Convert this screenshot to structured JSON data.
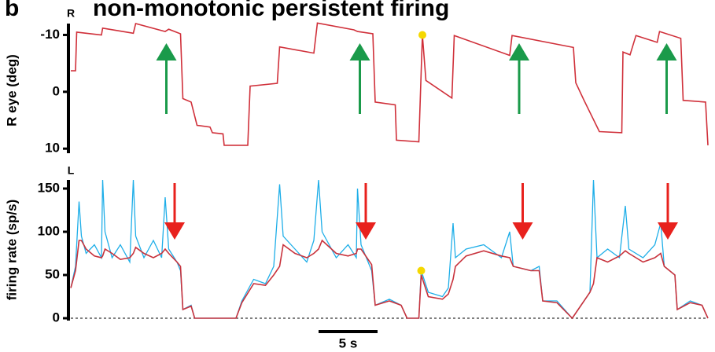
{
  "chart_data": [
    {
      "type": "line",
      "label": "b",
      "title": "non-monotonic persistent firing",
      "ylabel": "R eye (deg)",
      "top_label": "R",
      "bottom_label": "L",
      "xlim": [
        0,
        54
      ],
      "ylim": [
        10.8,
        -12
      ],
      "yticks": [
        -10,
        0,
        10
      ],
      "x": [
        0,
        0.4,
        0.5,
        2.6,
        2.7,
        5.3,
        5.5,
        8,
        8.3,
        9.3,
        9.5,
        10.2,
        10.7,
        11.8,
        12,
        12.9,
        13,
        15,
        15.2,
        17.5,
        17.7,
        20.6,
        20.9,
        24,
        24.3,
        25.6,
        25.8,
        27.5,
        27.6,
        29.5,
        29.8,
        30.1,
        32.3,
        32.5,
        37.2,
        37.4,
        42.6,
        42.8,
        43.5,
        44.8,
        46.7,
        46.8,
        47.4,
        47.9,
        49.7,
        49.9,
        51.7,
        51.9,
        53.8,
        54
      ],
      "series": [
        {
          "color": "#d0303a",
          "values": [
            -3.7,
            -3.7,
            -10.5,
            -10,
            -11.2,
            -10.3,
            -12,
            -10.6,
            -11,
            -10.2,
            1.2,
            1.8,
            5.9,
            6.2,
            7.2,
            7.4,
            9.4,
            9.4,
            -1,
            -1.5,
            -7.9,
            -6.8,
            -12.1,
            -10.9,
            -10.6,
            -10.2,
            1.8,
            2.3,
            8.5,
            8.8,
            -10,
            -2,
            1.1,
            -9.9,
            -6.4,
            -9.9,
            -7.8,
            -1.6,
            1.5,
            7,
            7.2,
            -7,
            -6.5,
            -9.9,
            -8.7,
            -10.6,
            -9.4,
            1.5,
            1.8,
            9.4
          ]
        },
        {
          "color": "#f5d800",
          "marker": "dot",
          "x": [
            29.8
          ],
          "values": [
            -10
          ]
        }
      ],
      "arrows": {
        "color": "#1a9a4a",
        "direction": "up",
        "x": [
          8.1,
          24.5,
          38,
          50.5
        ]
      }
    },
    {
      "type": "line",
      "ylabel": "firing rate (sp/s)",
      "zero_line": "dashed",
      "xlim": [
        0,
        54
      ],
      "ylim": [
        0,
        160
      ],
      "yticks": [
        0,
        50,
        100,
        150
      ],
      "x": [
        0,
        0.4,
        0.7,
        0.9,
        1.3,
        2,
        2.6,
        2.7,
        2.9,
        3.5,
        4.2,
        5,
        5.3,
        5.5,
        6.2,
        7,
        7.7,
        8,
        8.3,
        9,
        9.3,
        9.5,
        10.2,
        10.5,
        14,
        14.5,
        15.5,
        16.5,
        17.2,
        17.7,
        18,
        19,
        20,
        20.6,
        21,
        21.3,
        22.5,
        23.5,
        24.2,
        24.3,
        24.6,
        25.5,
        25.8,
        27,
        28,
        28.5,
        29.5,
        29.7,
        30.3,
        31.5,
        32,
        32.4,
        32.6,
        33.5,
        35,
        36.5,
        37.2,
        37.5,
        39,
        39.7,
        40,
        41.2,
        42.5,
        43,
        44,
        44.3,
        44.6,
        45.5,
        46.5,
        47,
        47.3,
        48.5,
        49.5,
        50,
        50.3,
        51.2,
        51.4,
        52.5,
        53.5,
        54
      ],
      "series": [
        {
          "color": "#1eaee8",
          "values": [
            35,
            60,
            135,
            95,
            75,
            85,
            70,
            160,
            100,
            70,
            85,
            65,
            160,
            95,
            70,
            90,
            70,
            140,
            80,
            65,
            55,
            10,
            15,
            0,
            0,
            20,
            45,
            40,
            60,
            155,
            95,
            80,
            65,
            90,
            160,
            100,
            70,
            85,
            70,
            150,
            85,
            55,
            15,
            22,
            15,
            0,
            0,
            55,
            30,
            25,
            35,
            110,
            70,
            80,
            85,
            70,
            100,
            60,
            55,
            60,
            20,
            20,
            0,
            10,
            30,
            160,
            70,
            80,
            70,
            130,
            80,
            70,
            85,
            110,
            60,
            50,
            10,
            20,
            15,
            0
          ]
        },
        {
          "color": "#c8323c",
          "values": [
            35,
            55,
            90,
            90,
            80,
            72,
            70,
            72,
            80,
            75,
            68,
            70,
            75,
            82,
            75,
            70,
            75,
            80,
            75,
            65,
            60,
            10,
            14,
            0,
            0,
            18,
            40,
            38,
            50,
            60,
            85,
            75,
            70,
            75,
            80,
            90,
            75,
            72,
            75,
            80,
            80,
            62,
            15,
            20,
            15,
            0,
            0,
            50,
            25,
            22,
            28,
            45,
            60,
            72,
            78,
            72,
            70,
            60,
            55,
            55,
            20,
            18,
            0,
            10,
            30,
            40,
            70,
            65,
            72,
            78,
            75,
            65,
            70,
            75,
            60,
            50,
            10,
            18,
            15,
            0
          ]
        },
        {
          "color": "#f5d800",
          "marker": "dot",
          "x": [
            29.7
          ],
          "values": [
            55
          ]
        }
      ],
      "arrows": {
        "color": "#e8211d",
        "direction": "down",
        "x": [
          8.8,
          25,
          38.3,
          50.6
        ]
      },
      "scale_bar": {
        "value": 5,
        "label": "5 s"
      }
    }
  ]
}
